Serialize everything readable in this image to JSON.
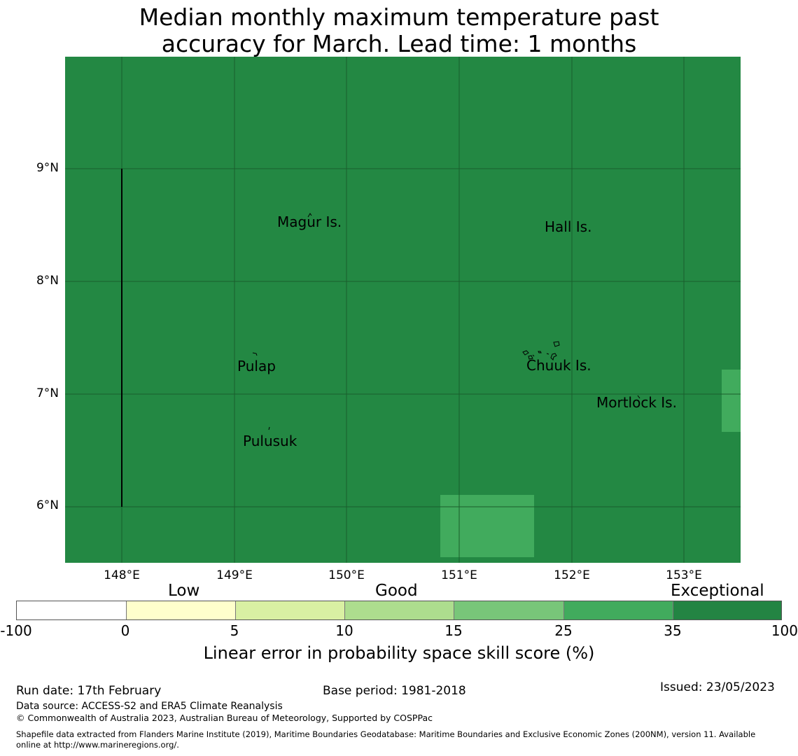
{
  "title_line1": "Median monthly maximum temperature past",
  "title_line2": "accuracy for March. Lead time: 1 months",
  "map": {
    "background_color": "#238843",
    "patch_color": "#41ab5d",
    "gridline_color": "#1a5e2c",
    "lat_labels": [
      "9°N",
      "8°N",
      "7°N",
      "6°N"
    ],
    "lon_labels": [
      "148°E",
      "149°E",
      "150°E",
      "151°E",
      "152°E",
      "153°E"
    ],
    "places": [
      "Magur Is.",
      "Hall Is.",
      "Pulap",
      "Chuuk Is.",
      "Mortlock Is.",
      "Pulusuk"
    ]
  },
  "colorbar": {
    "categories": [
      "Low",
      "Good",
      "Exceptional"
    ],
    "ticks": [
      "-100",
      "0",
      "5",
      "10",
      "15",
      "25",
      "35",
      "100"
    ],
    "colors": [
      "#ffffff",
      "#ffffcc",
      "#d9f0a3",
      "#addd8e",
      "#78c679",
      "#41ab5d",
      "#238443"
    ],
    "label": "Linear error in probability space skill score (%)"
  },
  "footer": {
    "run_date": "Run date: 17th February",
    "base_period": "Base period: 1981-2018",
    "issued": "Issued: 23/05/2023",
    "data_source": "Data source: ACCESS-S2 and ERA5 Climate Reanalysis",
    "copyright": "© Commonwealth of Australia 2023, Australian Bureau of Meteorology, Supported by COSPPac",
    "shapefile_line1": "Shapefile data extracted from Flanders Marine Institute (2019), Maritime Boundaries Geodatabase: Maritime Boundaries and Exclusive Economic Zones (200NM), version 11. Available",
    "shapefile_line2": "online at http://www.marineregions.org/."
  }
}
